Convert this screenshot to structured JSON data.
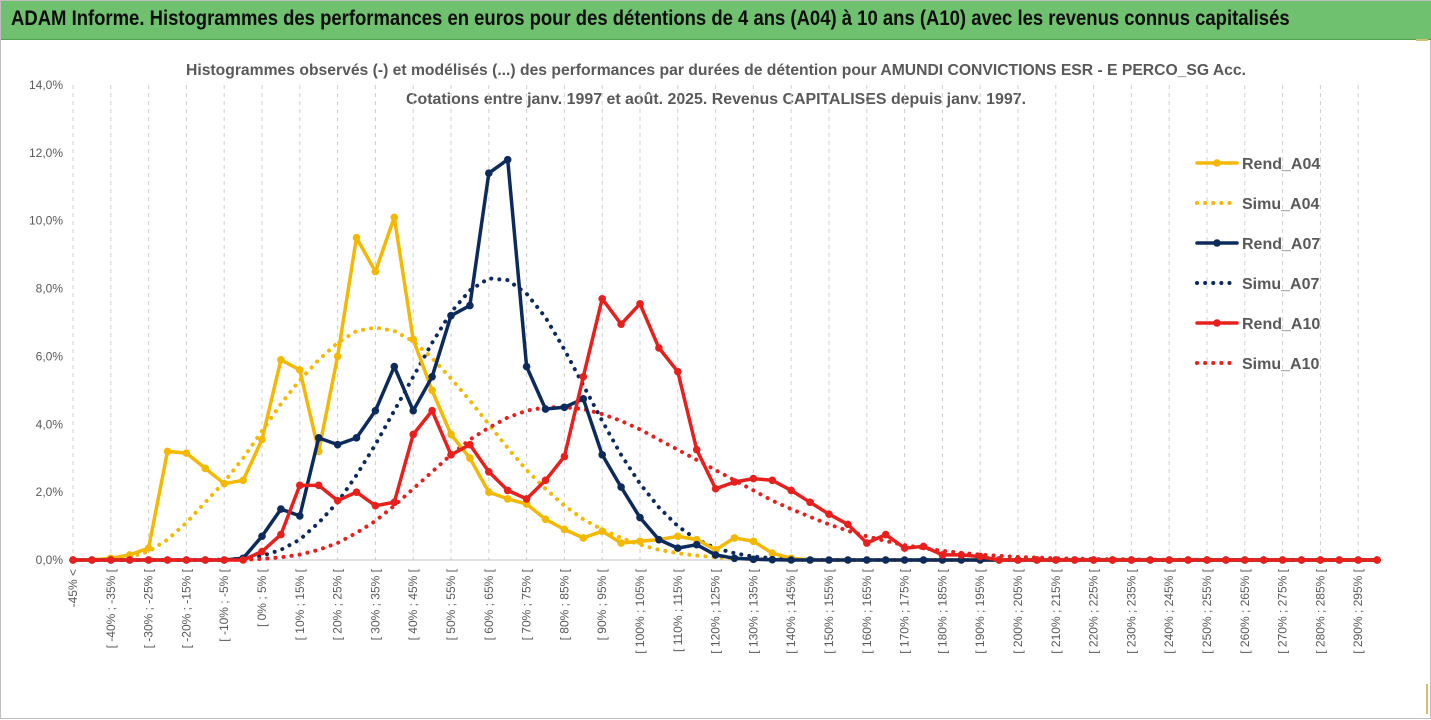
{
  "header": {
    "banner_title": "ADAM Informe. Histogrammes des performances en euros pour des détentions de 4 ans (A04) à 10 ans (A10) avec les revenus connus capitalisés"
  },
  "chart_data": {
    "type": "line",
    "title": "Histogrammes observés (-) et modélisés (...) des performances par durées de détention pour AMUNDI CONVICTIONS ESR - E PERCO_SG Acc.",
    "subtitle": "Cotations entre janv. 1997 et août. 2025. Revenus CAPITALISES depuis janv. 1997.",
    "ylim": [
      0,
      14
    ],
    "yticks": [
      "0,0%",
      "2,0%",
      "4,0%",
      "6,0%",
      "8,0%",
      "10,0%",
      "12,0%",
      "14,0%"
    ],
    "grid": "vertical dashed",
    "legend_position": "right",
    "x_tick_labels": [
      "-45% <",
      "[ -40% ; -35% [",
      "[ -30% ; -25% [",
      "[ -20% ; -15% [",
      "[ -10% ; -5% [",
      "[ 0% ; 5% [",
      "[ 10% ; 15% [",
      "[ 20% ; 25% [",
      "[ 30% ; 35% [",
      "[ 40% ; 45% [",
      "[ 50% ; 55% [",
      "[ 60% ; 65% [",
      "[ 70% ; 75% [",
      "[ 80% ; 85% [",
      "[ 90% ; 95% [",
      "[ 100% ; 105% [",
      "[ 110% ; 115% [",
      "[ 120% ; 125% [",
      "[ 130% ; 135% [",
      "[ 140% ; 145% [",
      "[ 150% ; 155% [",
      "[ 160% ; 165% [",
      "[ 170% ; 175% [",
      "[ 180% ; 185% [",
      "[ 190% ; 195% [",
      "[ 200% ; 205% [",
      "[ 210% ; 215% [",
      "[ 220% ; 225% [",
      "[ 230% ; 235% [",
      "[ 240% ; 245% [",
      "[ 250% ; 255% [",
      "[ 260% ; 265% [",
      "[ 270% ; 275% [",
      "[ 280% ; 285% [",
      "[ 290% ; 295% ["
    ],
    "categories_count": 70,
    "series": [
      {
        "name": "Rend_A04",
        "color": "#f5b800",
        "style": "solid",
        "markers": true,
        "values": [
          0,
          0,
          0.05,
          0.15,
          0.35,
          3.2,
          3.15,
          2.7,
          2.25,
          2.35,
          3.55,
          5.9,
          5.6,
          3.2,
          6.0,
          9.5,
          8.5,
          10.1,
          6.5,
          5.0,
          3.7,
          3.0,
          2.0,
          1.8,
          1.65,
          1.2,
          0.9,
          0.65,
          0.85,
          0.5,
          0.55,
          0.6,
          0.7,
          0.6,
          0.3,
          0.65,
          0.55,
          0.2,
          0.05,
          0,
          0,
          0,
          0,
          0,
          0,
          0,
          0,
          0,
          0,
          0,
          0,
          0,
          0,
          0,
          0,
          0,
          0,
          0,
          0,
          0,
          0,
          0,
          0,
          0,
          0,
          0,
          0,
          0,
          0,
          0
        ]
      },
      {
        "name": "Simu_A04",
        "color": "#f5b800",
        "style": "dotted",
        "markers": false,
        "values": [
          0,
          0,
          0.02,
          0.08,
          0.25,
          0.6,
          1.1,
          1.7,
          2.3,
          3.0,
          3.8,
          4.6,
          5.3,
          5.9,
          6.4,
          6.75,
          6.85,
          6.75,
          6.45,
          5.95,
          5.35,
          4.7,
          4.0,
          3.3,
          2.65,
          2.1,
          1.6,
          1.2,
          0.9,
          0.65,
          0.45,
          0.3,
          0.2,
          0.13,
          0.08,
          0.05,
          0.03,
          0.02,
          0.01,
          0,
          0,
          0,
          0,
          0,
          0,
          0,
          0,
          0,
          0,
          0,
          0,
          0,
          0,
          0,
          0,
          0,
          0,
          0,
          0,
          0,
          0,
          0,
          0,
          0,
          0,
          0,
          0,
          0,
          0,
          0
        ]
      },
      {
        "name": "Rend_A07",
        "color": "#0d2a5c",
        "style": "solid",
        "markers": true,
        "values": [
          0,
          0,
          0,
          0,
          0,
          0,
          0,
          0,
          0,
          0.05,
          0.7,
          1.5,
          1.3,
          3.6,
          3.4,
          3.6,
          4.4,
          5.7,
          4.4,
          5.4,
          7.2,
          7.5,
          11.4,
          11.8,
          5.7,
          4.45,
          4.5,
          4.75,
          3.1,
          2.15,
          1.25,
          0.6,
          0.35,
          0.45,
          0.15,
          0.05,
          0.02,
          0.01,
          0,
          0,
          0,
          0,
          0,
          0,
          0,
          0,
          0,
          0,
          0,
          0,
          0,
          0,
          0,
          0,
          0,
          0,
          0,
          0,
          0,
          0,
          0,
          0,
          0,
          0,
          0,
          0,
          0,
          0,
          0,
          0
        ]
      },
      {
        "name": "Simu_A07",
        "color": "#0d2a5c",
        "style": "dotted",
        "markers": false,
        "values": [
          0,
          0,
          0,
          0,
          0,
          0,
          0,
          0,
          0.01,
          0.04,
          0.12,
          0.3,
          0.6,
          1.1,
          1.7,
          2.5,
          3.4,
          4.4,
          5.4,
          6.4,
          7.3,
          7.95,
          8.3,
          8.25,
          7.85,
          7.15,
          6.2,
          5.15,
          4.1,
          3.1,
          2.25,
          1.55,
          1.0,
          0.6,
          0.35,
          0.2,
          0.1,
          0.05,
          0.02,
          0.01,
          0,
          0,
          0,
          0,
          0,
          0,
          0,
          0,
          0,
          0,
          0,
          0,
          0,
          0,
          0,
          0,
          0,
          0,
          0,
          0,
          0,
          0,
          0,
          0,
          0,
          0,
          0,
          0,
          0,
          0
        ]
      },
      {
        "name": "Rend_A10",
        "color": "#e8201d",
        "style": "solid",
        "markers": true,
        "values": [
          0,
          0,
          0,
          0,
          0,
          0,
          0,
          0,
          0,
          0,
          0.25,
          0.75,
          2.2,
          2.2,
          1.75,
          2.0,
          1.6,
          1.7,
          3.7,
          4.4,
          3.1,
          3.4,
          2.6,
          2.05,
          1.8,
          2.35,
          3.05,
          5.4,
          7.7,
          6.95,
          7.55,
          6.25,
          5.55,
          3.25,
          2.1,
          2.3,
          2.4,
          2.35,
          2.05,
          1.7,
          1.35,
          1.05,
          0.5,
          0.75,
          0.35,
          0.4,
          0.15,
          0.15,
          0.1,
          0,
          0,
          0,
          0,
          0,
          0,
          0,
          0,
          0,
          0,
          0,
          0,
          0,
          0,
          0,
          0,
          0,
          0,
          0,
          0,
          0
        ]
      },
      {
        "name": "Simu_A10",
        "color": "#e8201d",
        "style": "dotted",
        "markers": false,
        "values": [
          0,
          0,
          0,
          0,
          0,
          0,
          0,
          0,
          0,
          0.01,
          0.03,
          0.08,
          0.16,
          0.3,
          0.5,
          0.8,
          1.15,
          1.6,
          2.1,
          2.6,
          3.1,
          3.55,
          3.9,
          4.2,
          4.4,
          4.5,
          4.5,
          4.45,
          4.3,
          4.1,
          3.85,
          3.55,
          3.25,
          2.95,
          2.65,
          2.35,
          2.05,
          1.75,
          1.5,
          1.27,
          1.05,
          0.86,
          0.7,
          0.56,
          0.44,
          0.35,
          0.27,
          0.21,
          0.16,
          0.12,
          0.09,
          0.07,
          0.05,
          0.04,
          0.03,
          0.02,
          0.02,
          0.01,
          0.01,
          0.01,
          0,
          0,
          0,
          0,
          0,
          0,
          0,
          0,
          0,
          0
        ]
      }
    ]
  }
}
